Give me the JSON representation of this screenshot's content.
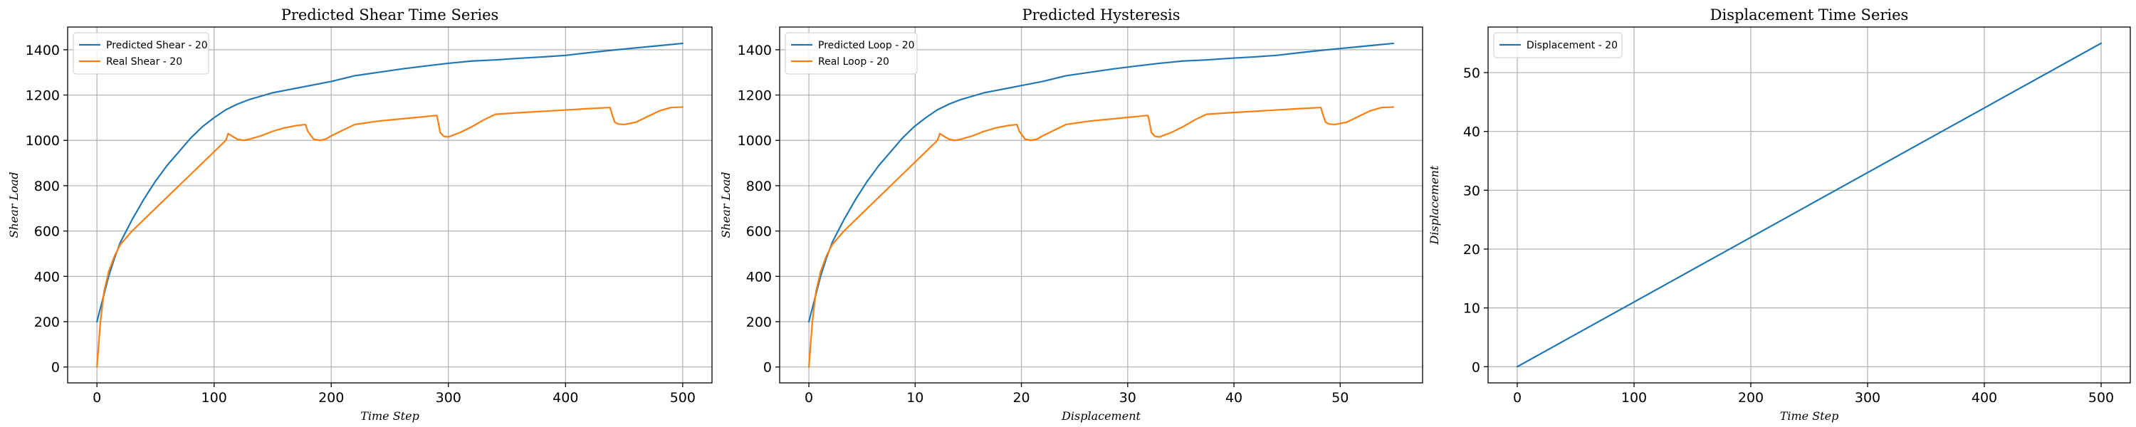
{
  "chart_data": [
    {
      "type": "line",
      "title": "Predicted Shear Time Series",
      "xlabel": "Time Step",
      "ylabel": "Shear Load",
      "xlim": [
        -25,
        525
      ],
      "ylim": [
        -70,
        1500
      ],
      "xticks": [
        0,
        100,
        200,
        300,
        400,
        500
      ],
      "yticks": [
        0,
        200,
        400,
        600,
        800,
        1000,
        1200,
        1400
      ],
      "grid": true,
      "legend": "top-left",
      "series": [
        {
          "name": "Predicted Shear - 20",
          "color": "#1f77b4",
          "x": [
            0,
            5,
            10,
            15,
            20,
            30,
            40,
            50,
            60,
            70,
            80,
            90,
            100,
            110,
            120,
            130,
            140,
            150,
            160,
            170,
            180,
            200,
            220,
            240,
            260,
            280,
            300,
            320,
            340,
            360,
            380,
            400,
            420,
            440,
            460,
            480,
            500
          ],
          "y": [
            200,
            300,
            400,
            480,
            550,
            650,
            740,
            820,
            890,
            950,
            1010,
            1060,
            1100,
            1135,
            1160,
            1180,
            1195,
            1210,
            1220,
            1230,
            1240,
            1260,
            1285,
            1300,
            1315,
            1328,
            1340,
            1350,
            1355,
            1362,
            1368,
            1375,
            1387,
            1398,
            1408,
            1418,
            1428
          ]
        },
        {
          "name": "Real Shear - 20",
          "color": "#ff7f0e",
          "x": [
            0,
            3,
            6,
            10,
            15,
            20,
            30,
            40,
            50,
            60,
            70,
            80,
            90,
            100,
            110,
            112,
            115,
            120,
            125,
            130,
            140,
            150,
            160,
            170,
            178,
            180,
            185,
            190,
            195,
            200,
            210,
            220,
            240,
            260,
            280,
            290,
            291,
            293,
            296,
            300,
            310,
            320,
            330,
            340,
            360,
            380,
            400,
            420,
            438,
            440,
            442,
            445,
            450,
            460,
            470,
            480,
            490,
            500
          ],
          "y": [
            0,
            200,
            330,
            420,
            490,
            540,
            600,
            650,
            700,
            750,
            800,
            850,
            900,
            950,
            1000,
            1030,
            1020,
            1005,
            1000,
            1005,
            1020,
            1040,
            1055,
            1065,
            1070,
            1040,
            1005,
            1000,
            1005,
            1020,
            1045,
            1070,
            1085,
            1095,
            1105,
            1110,
            1090,
            1035,
            1018,
            1015,
            1035,
            1060,
            1090,
            1115,
            1122,
            1128,
            1134,
            1140,
            1145,
            1110,
            1080,
            1072,
            1070,
            1080,
            1105,
            1130,
            1145,
            1147
          ]
        }
      ]
    },
    {
      "type": "line",
      "title": "Predicted Hysteresis",
      "xlabel": "Displacement",
      "ylabel": "Shear Load",
      "xlim": [
        -2.75,
        57.75
      ],
      "ylim": [
        -70,
        1500
      ],
      "xticks": [
        0,
        10,
        20,
        30,
        40,
        50
      ],
      "yticks": [
        0,
        200,
        400,
        600,
        800,
        1000,
        1200,
        1400
      ],
      "grid": true,
      "legend": "top-left",
      "series": [
        {
          "name": "Predicted Loop - 20",
          "color": "#1f77b4",
          "x": [
            0,
            0.55,
            1.1,
            1.65,
            2.2,
            3.3,
            4.4,
            5.5,
            6.6,
            7.7,
            8.8,
            9.9,
            11,
            12.1,
            13.2,
            14.3,
            15.4,
            16.5,
            17.6,
            18.7,
            19.8,
            22,
            24.2,
            26.4,
            28.6,
            30.8,
            33,
            35.2,
            37.4,
            39.6,
            41.8,
            44,
            46.2,
            48.4,
            50.6,
            52.8,
            55
          ],
          "y": [
            200,
            300,
            400,
            480,
            550,
            650,
            740,
            820,
            890,
            950,
            1010,
            1060,
            1100,
            1135,
            1160,
            1180,
            1195,
            1210,
            1220,
            1230,
            1240,
            1260,
            1285,
            1300,
            1315,
            1328,
            1340,
            1350,
            1355,
            1362,
            1368,
            1375,
            1387,
            1398,
            1408,
            1418,
            1428
          ]
        },
        {
          "name": "Real Loop - 20",
          "color": "#ff7f0e",
          "x": [
            0,
            0.33,
            0.66,
            1.1,
            1.65,
            2.2,
            3.3,
            4.4,
            5.5,
            6.6,
            7.7,
            8.8,
            9.9,
            11,
            12.1,
            12.32,
            12.65,
            13.2,
            13.75,
            14.3,
            15.4,
            16.5,
            17.6,
            18.7,
            19.58,
            19.8,
            20.35,
            20.9,
            21.45,
            22,
            23.1,
            24.2,
            26.4,
            28.6,
            30.8,
            31.9,
            32.01,
            32.23,
            32.56,
            33,
            34.1,
            35.2,
            36.3,
            37.4,
            39.6,
            41.8,
            44,
            46.2,
            48.18,
            48.4,
            48.62,
            48.95,
            49.5,
            50.6,
            51.7,
            52.8,
            53.9,
            55
          ],
          "y": [
            0,
            200,
            330,
            420,
            490,
            540,
            600,
            650,
            700,
            750,
            800,
            850,
            900,
            950,
            1000,
            1030,
            1020,
            1005,
            1000,
            1005,
            1020,
            1040,
            1055,
            1065,
            1070,
            1040,
            1005,
            1000,
            1005,
            1020,
            1045,
            1070,
            1085,
            1095,
            1105,
            1110,
            1090,
            1035,
            1018,
            1015,
            1035,
            1060,
            1090,
            1115,
            1122,
            1128,
            1134,
            1140,
            1145,
            1110,
            1080,
            1072,
            1070,
            1080,
            1105,
            1130,
            1145,
            1147
          ]
        }
      ]
    },
    {
      "type": "line",
      "title": "Displacement Time Series",
      "xlabel": "Time Step",
      "ylabel": "Displacement",
      "xlim": [
        -25,
        525
      ],
      "ylim": [
        -2.75,
        57.75
      ],
      "xticks": [
        0,
        100,
        200,
        300,
        400,
        500
      ],
      "yticks": [
        0,
        10,
        20,
        30,
        40,
        50
      ],
      "grid": true,
      "legend": "top-left",
      "series": [
        {
          "name": "Displacement - 20",
          "color": "#1f77b4",
          "x": [
            0,
            500
          ],
          "y": [
            0,
            55
          ]
        }
      ]
    }
  ]
}
